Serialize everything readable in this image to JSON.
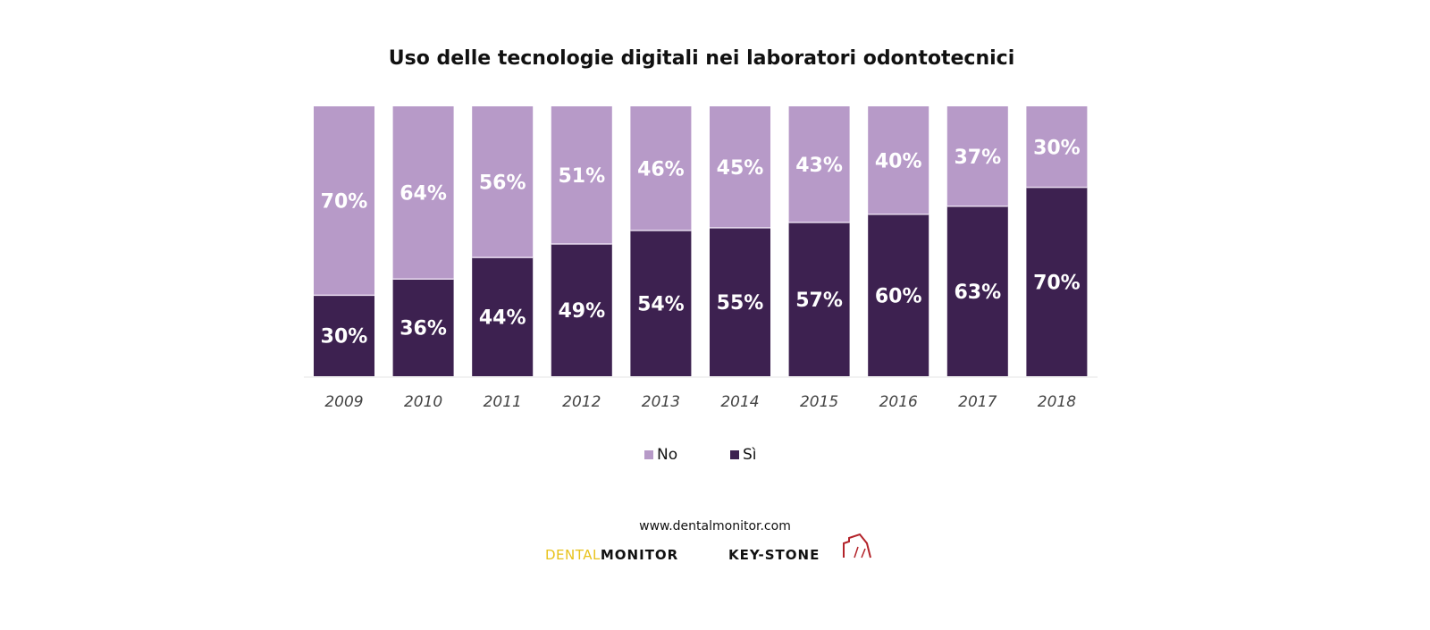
{
  "chart_data": {
    "type": "bar",
    "stacked": true,
    "percent_stacked": true,
    "title": "Uso delle tecnologie digitali nei laboratori odontotecnici",
    "xlabel": "",
    "ylabel": "",
    "ylim": [
      0,
      100
    ],
    "grid": false,
    "categories": [
      "2009",
      "2010",
      "2011",
      "2012",
      "2013",
      "2014",
      "2015",
      "2016",
      "2017",
      "2018"
    ],
    "series": [
      {
        "name": "Sì",
        "color": "#3d2150",
        "values": [
          30,
          36,
          44,
          49,
          54,
          55,
          57,
          60,
          63,
          70
        ]
      },
      {
        "name": "No",
        "color": "#b79ac8",
        "values": [
          70,
          64,
          56,
          51,
          46,
          45,
          43,
          40,
          37,
          30
        ]
      }
    ],
    "data_label_suffix": "%",
    "legend": {
      "position": "bottom",
      "entries": [
        "No",
        "Sì"
      ]
    }
  },
  "footer": {
    "url": "www.dentalmonitor.com",
    "logo_dental_part1": "DENTAL",
    "logo_dental_part2": "MONITOR",
    "logo_keystone": "KEY-STONE"
  }
}
